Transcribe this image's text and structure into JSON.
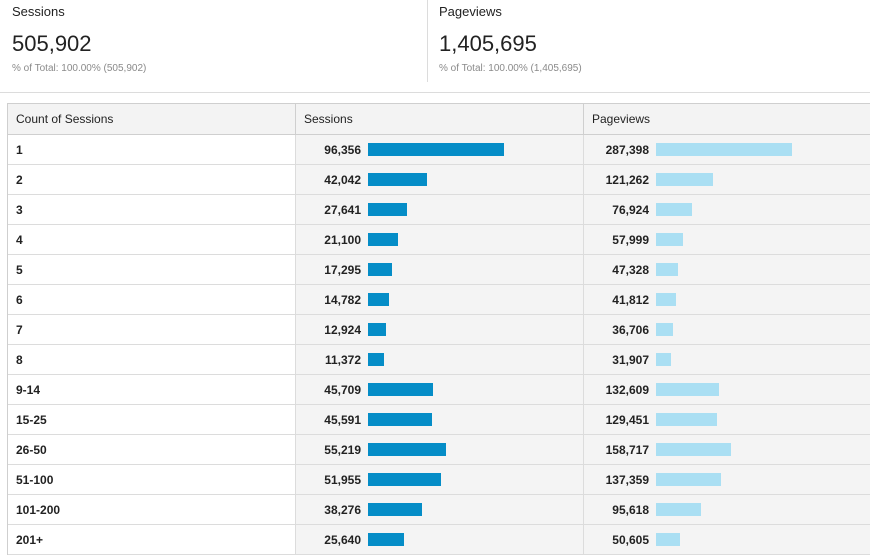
{
  "summary": {
    "sessions": {
      "label": "Sessions",
      "value": "505,902",
      "sub": "% of Total: 100.00% (505,902)"
    },
    "pageviews": {
      "label": "Pageviews",
      "value": "1,405,695",
      "sub": "% of Total: 100.00% (1,405,695)"
    }
  },
  "table": {
    "headers": [
      "Count of Sessions",
      "Sessions",
      "Pageviews"
    ],
    "rows": [
      {
        "count": "1",
        "sessions": "96,356",
        "pageviews": "287,398",
        "s": 96356,
        "p": 287398
      },
      {
        "count": "2",
        "sessions": "42,042",
        "pageviews": "121,262",
        "s": 42042,
        "p": 121262
      },
      {
        "count": "3",
        "sessions": "27,641",
        "pageviews": "76,924",
        "s": 27641,
        "p": 76924
      },
      {
        "count": "4",
        "sessions": "21,100",
        "pageviews": "57,999",
        "s": 21100,
        "p": 57999
      },
      {
        "count": "5",
        "sessions": "17,295",
        "pageviews": "47,328",
        "s": 17295,
        "p": 47328
      },
      {
        "count": "6",
        "sessions": "14,782",
        "pageviews": "41,812",
        "s": 14782,
        "p": 41812
      },
      {
        "count": "7",
        "sessions": "12,924",
        "pageviews": "36,706",
        "s": 12924,
        "p": 36706
      },
      {
        "count": "8",
        "sessions": "11,372",
        "pageviews": "31,907",
        "s": 11372,
        "p": 31907
      },
      {
        "count": "9-14",
        "sessions": "45,709",
        "pageviews": "132,609",
        "s": 45709,
        "p": 132609
      },
      {
        "count": "15-25",
        "sessions": "45,591",
        "pageviews": "129,451",
        "s": 45591,
        "p": 129451
      },
      {
        "count": "26-50",
        "sessions": "55,219",
        "pageviews": "158,717",
        "s": 55219,
        "p": 158717
      },
      {
        "count": "51-100",
        "sessions": "51,955",
        "pageviews": "137,359",
        "s": 51955,
        "p": 137359
      },
      {
        "count": "101-200",
        "sessions": "38,276",
        "pageviews": "95,618",
        "s": 38276,
        "p": 95618
      },
      {
        "count": "201+",
        "sessions": "25,640",
        "pageviews": "50,605",
        "s": 25640,
        "p": 50605
      }
    ]
  },
  "colors": {
    "sessions_bar": "#058dc7",
    "pageviews_bar": "#aadff3"
  }
}
